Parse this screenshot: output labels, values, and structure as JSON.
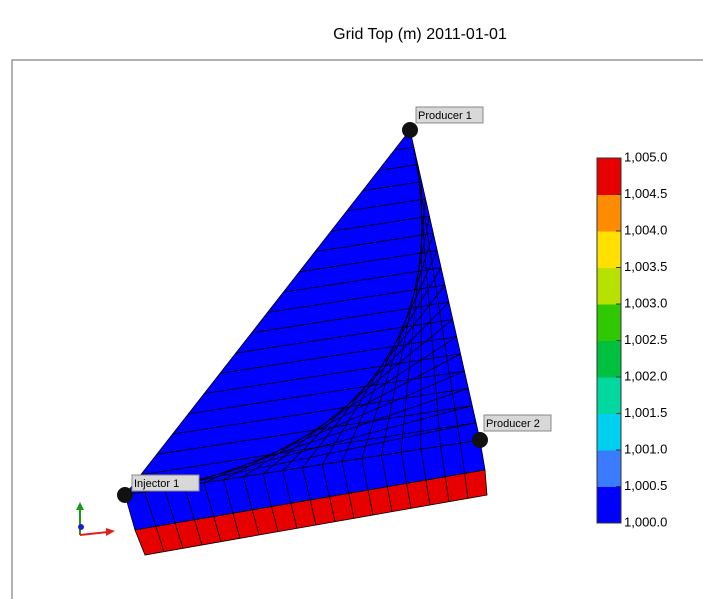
{
  "title": "Grid Top (m) 2011-01-01",
  "wells": [
    {
      "label": "Producer 1"
    },
    {
      "label": "Producer 2"
    },
    {
      "label": "Injector 1"
    }
  ],
  "colorbar": {
    "range": [
      1000,
      1005
    ],
    "colors": [
      "#0000ff",
      "#3a7cff",
      "#00d0f0",
      "#00d8a0",
      "#00c040",
      "#30c800",
      "#b8e000",
      "#ffe000",
      "#ff8c00",
      "#e60000"
    ],
    "ticks": [
      {
        "value": 1005,
        "label": "1,005.0"
      },
      {
        "value": 1004.5,
        "label": "1,004.5"
      },
      {
        "value": 1004,
        "label": "1,004.0"
      },
      {
        "value": 1003.5,
        "label": "1,003.5"
      },
      {
        "value": 1003,
        "label": "1,003.0"
      },
      {
        "value": 1002.5,
        "label": "1,002.5"
      },
      {
        "value": 1002,
        "label": "1,002.0"
      },
      {
        "value": 1001.5,
        "label": "1,001.5"
      },
      {
        "value": 1001,
        "label": "1,001.0"
      },
      {
        "value": 1000.5,
        "label": "1,000.5"
      },
      {
        "value": 1000,
        "label": "1,000.0"
      }
    ]
  }
}
